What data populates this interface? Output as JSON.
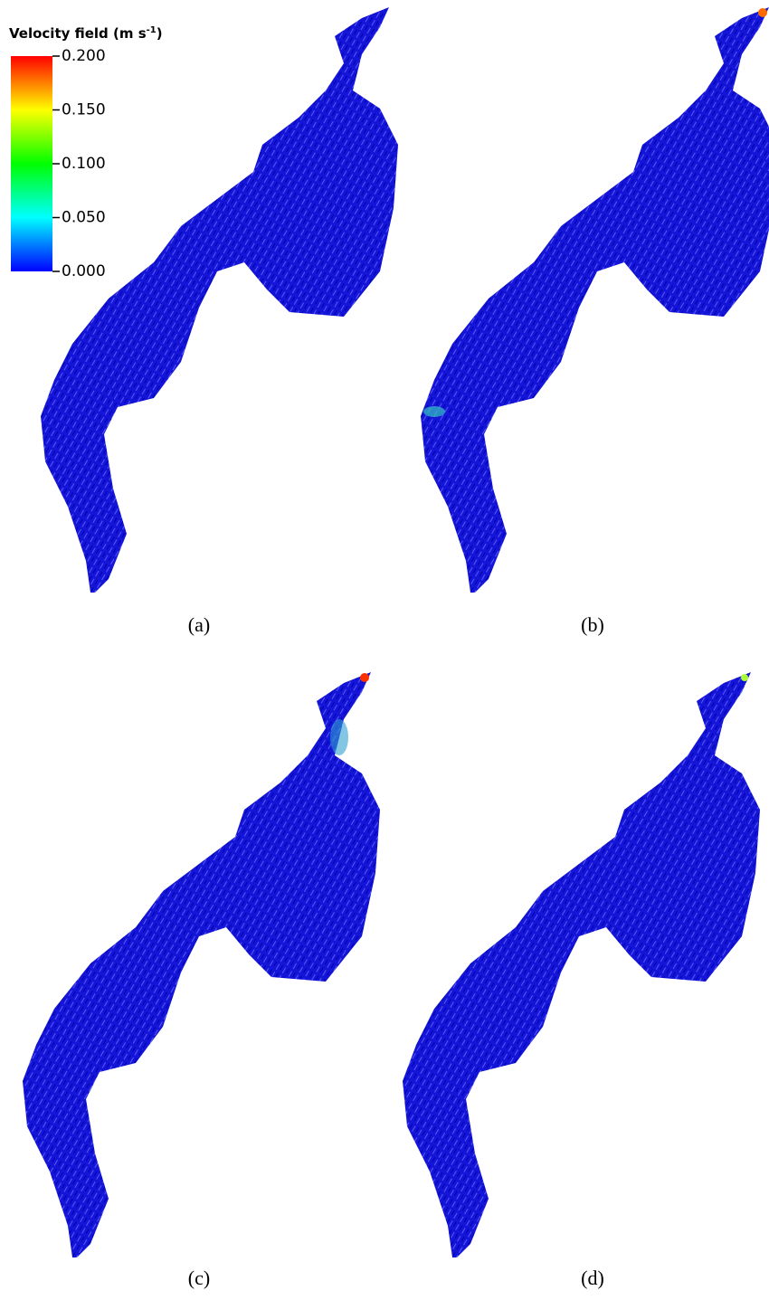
{
  "legend": {
    "title": "Velocity field (m s",
    "title_sup": "-1",
    "title_end": ")",
    "ticks": [
      {
        "value": 0.2,
        "label": "0.200"
      },
      {
        "value": 0.15,
        "label": "0.150"
      },
      {
        "value": 0.1,
        "label": "0.100"
      },
      {
        "value": 0.05,
        "label": "0.050"
      },
      {
        "value": 0,
        "label": "0.000"
      }
    ]
  },
  "panels": [
    {
      "caption": "(a)"
    },
    {
      "caption": "(b)"
    },
    {
      "caption": "(c)"
    },
    {
      "caption": "(d)"
    }
  ]
}
